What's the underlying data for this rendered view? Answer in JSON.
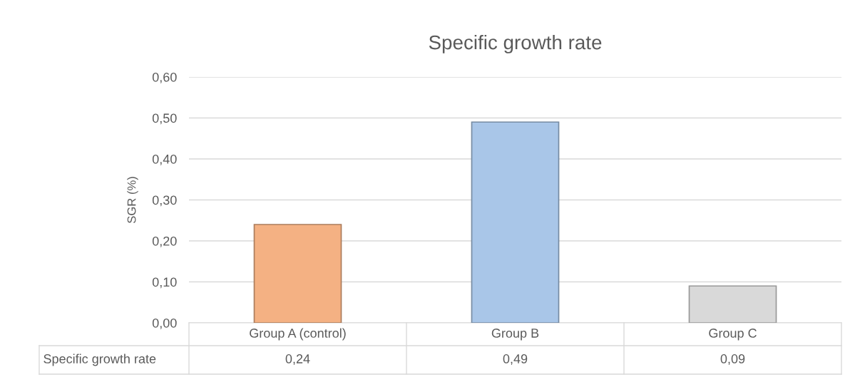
{
  "chart_data": {
    "type": "bar",
    "title": "Specific growth rate",
    "ylabel": "SGR (%)",
    "categories": [
      "Group A (control)",
      "Group B",
      "Group C"
    ],
    "series": [
      {
        "name": "Specific growth rate",
        "values": [
          0.24,
          0.49,
          0.09
        ],
        "colors": [
          "#f4b183",
          "#a9c6e8",
          "#d9d9d9"
        ],
        "value_labels": [
          "0,24",
          "0,49",
          "0,09"
        ]
      }
    ],
    "ylim": [
      0,
      0.6
    ],
    "yticks": [
      {
        "value": 0,
        "label": "0,00"
      },
      {
        "value": 0.1,
        "label": "0,10"
      },
      {
        "value": 0.2,
        "label": "0,20"
      },
      {
        "value": 0.3,
        "label": "0,30"
      },
      {
        "value": 0.4,
        "label": "0,40"
      },
      {
        "value": 0.5,
        "label": "0,50"
      },
      {
        "value": 0.6,
        "label": "0,60"
      }
    ],
    "grid": "y"
  }
}
